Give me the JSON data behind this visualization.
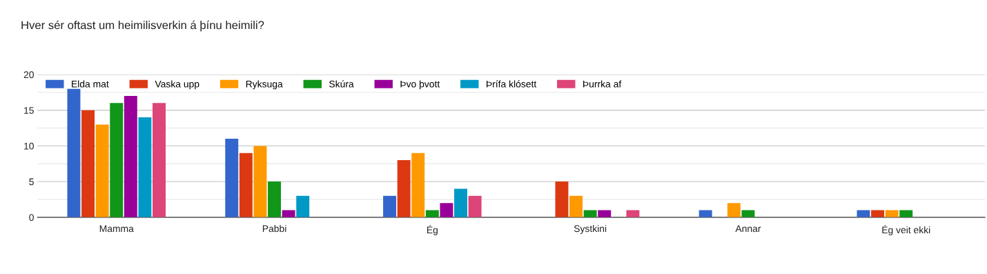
{
  "chart_data": {
    "type": "bar",
    "title": "Hver sér oftast um heimilisverkin á þínu heimili?",
    "categories": [
      "Mamma",
      "Pabbi",
      "Ég",
      "Systkini",
      "Annar",
      "Ég veit ekki"
    ],
    "series": [
      {
        "name": "Elda mat",
        "color": "#3366cc",
        "values": [
          18,
          11,
          3,
          0,
          1,
          1
        ]
      },
      {
        "name": "Vaska upp",
        "color": "#dc3912",
        "values": [
          15,
          9,
          8,
          5,
          0,
          1
        ]
      },
      {
        "name": "Ryksuga",
        "color": "#ff9900",
        "values": [
          13,
          10,
          9,
          3,
          2,
          1
        ]
      },
      {
        "name": "Skúra",
        "color": "#109618",
        "values": [
          16,
          5,
          1,
          1,
          1,
          1
        ]
      },
      {
        "name": "Þvo þvott",
        "color": "#990099",
        "values": [
          17,
          1,
          2,
          1,
          0,
          0
        ]
      },
      {
        "name": "Þrífa klósett",
        "color": "#0099c6",
        "values": [
          14,
          3,
          4,
          0,
          0,
          0
        ]
      },
      {
        "name": "Þurrka af",
        "color": "#dd4477",
        "values": [
          16,
          0,
          3,
          1,
          0,
          0
        ]
      }
    ],
    "ylim": [
      0,
      20
    ],
    "yticks": [
      0,
      5,
      10,
      15,
      20
    ],
    "grid": "y",
    "legend": "top left"
  }
}
